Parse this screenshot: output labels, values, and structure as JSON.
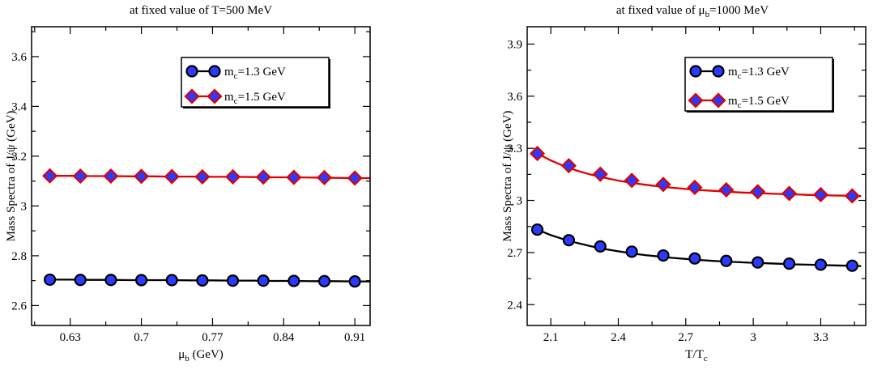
{
  "chart_data": [
    {
      "type": "line",
      "title": "at fixed value of T=500 MeV",
      "xlabel": "μ",
      "xlabel_sub": "b",
      "xlabel_suffix": " (GeV)",
      "ylabel": "Mass Spectra of J/ψ (GeV)",
      "xlim": [
        0.592,
        0.925
      ],
      "ylim": [
        2.52,
        3.72
      ],
      "xticks": [
        0.63,
        0.7,
        0.77,
        0.84,
        0.91
      ],
      "xtick_labels": [
        "0.63",
        "0.7",
        "0.77",
        "0.84",
        "0.91"
      ],
      "yticks": [
        2.6,
        2.8,
        3.0,
        3.2,
        3.4,
        3.6
      ],
      "ytick_labels": [
        "2.6",
        "2.8",
        "3",
        "3.2",
        "3.4",
        "3.6"
      ],
      "legend_position": "top-right",
      "series": [
        {
          "name_main": "m",
          "name_sub": "c",
          "name_suffix": "=1.3 GeV",
          "color": "#000000",
          "marker": "circle",
          "marker_fill": "#2a3bff",
          "x": [
            0.61,
            0.63,
            0.65,
            0.67,
            0.69,
            0.71,
            0.73,
            0.75,
            0.77,
            0.79,
            0.81,
            0.83,
            0.85,
            0.87,
            0.89,
            0.91,
            0.925
          ],
          "y": [
            2.704,
            2.704,
            2.703,
            2.703,
            2.702,
            2.702,
            2.702,
            2.701,
            2.701,
            2.7,
            2.7,
            2.699,
            2.699,
            2.698,
            2.698,
            2.697,
            2.697
          ],
          "marker_x": [
            0.61,
            0.64,
            0.67,
            0.7,
            0.73,
            0.76,
            0.79,
            0.82,
            0.85,
            0.88,
            0.91
          ],
          "marker_y": [
            2.704,
            2.703,
            2.703,
            2.702,
            2.702,
            2.701,
            2.7,
            2.7,
            2.699,
            2.698,
            2.697
          ]
        },
        {
          "name_main": "m",
          "name_sub": "c",
          "name_suffix": "=1.5 GeV",
          "color": "#e00000",
          "marker": "diamond",
          "marker_fill": "#2a3bff",
          "x": [
            0.61,
            0.63,
            0.65,
            0.67,
            0.69,
            0.71,
            0.73,
            0.75,
            0.77,
            0.79,
            0.81,
            0.83,
            0.85,
            0.87,
            0.89,
            0.91,
            0.925
          ],
          "y": [
            3.121,
            3.121,
            3.12,
            3.12,
            3.119,
            3.119,
            3.118,
            3.118,
            3.117,
            3.117,
            3.116,
            3.115,
            3.115,
            3.114,
            3.113,
            3.112,
            3.112
          ],
          "marker_x": [
            0.61,
            0.64,
            0.67,
            0.7,
            0.73,
            0.76,
            0.79,
            0.82,
            0.85,
            0.88,
            0.91
          ],
          "marker_y": [
            3.121,
            3.12,
            3.12,
            3.119,
            3.118,
            3.117,
            3.117,
            3.116,
            3.115,
            3.114,
            3.112
          ]
        }
      ]
    },
    {
      "type": "line",
      "title": "at fixed value of μ",
      "title_sub": "b",
      "title_suffix": "=1000 MeV",
      "xlabel": "T/T",
      "xlabel_sub": "c",
      "xlabel_suffix": "",
      "ylabel": "Mass Spectra of J/ψ (GeV)",
      "xlim": [
        1.995,
        3.5
      ],
      "ylim": [
        2.28,
        4.0
      ],
      "xticks": [
        2.1,
        2.4,
        2.7,
        3.0,
        3.3
      ],
      "xtick_labels": [
        "2.1",
        "2.4",
        "2.7",
        "3",
        "3.3"
      ],
      "yticks": [
        2.4,
        2.7,
        3.0,
        3.3,
        3.6,
        3.9
      ],
      "ytick_labels": [
        "2.4",
        "2.7",
        "3",
        "3.3",
        "3.6",
        "3.9"
      ],
      "legend_position": "top-right",
      "series": [
        {
          "name_main": "m",
          "name_sub": "c",
          "name_suffix": "=1.3 GeV",
          "color": "#000000",
          "marker": "circle",
          "marker_fill": "#2a3bff",
          "x": [
            2.04,
            2.1,
            2.16,
            2.22,
            2.28,
            2.34,
            2.4,
            2.46,
            2.52,
            2.58,
            2.64,
            2.7,
            2.76,
            2.82,
            2.88,
            2.94,
            3.0,
            3.06,
            3.12,
            3.18,
            3.24,
            3.3,
            3.36,
            3.42,
            3.48
          ],
          "y": [
            2.832,
            2.8,
            2.775,
            2.754,
            2.736,
            2.72,
            2.707,
            2.695,
            2.685,
            2.677,
            2.669,
            2.663,
            2.657,
            2.652,
            2.648,
            2.644,
            2.641,
            2.638,
            2.635,
            2.632,
            2.63,
            2.628,
            2.626,
            2.624,
            2.622
          ],
          "marker_x": [
            2.04,
            2.18,
            2.32,
            2.46,
            2.6,
            2.74,
            2.88,
            3.02,
            3.16,
            3.3,
            3.44
          ],
          "marker_y": [
            2.832,
            2.771,
            2.735,
            2.705,
            2.683,
            2.666,
            2.652,
            2.643,
            2.636,
            2.63,
            2.624
          ]
        },
        {
          "name_main": "m",
          "name_sub": "c",
          "name_suffix": "=1.5 GeV",
          "color": "#e00000",
          "marker": "diamond",
          "marker_fill": "#2a3bff",
          "x": [
            2.04,
            2.1,
            2.16,
            2.22,
            2.28,
            2.34,
            2.4,
            2.46,
            2.52,
            2.58,
            2.64,
            2.7,
            2.76,
            2.82,
            2.88,
            2.94,
            3.0,
            3.06,
            3.12,
            3.18,
            3.24,
            3.3,
            3.36,
            3.42,
            3.48
          ],
          "y": [
            3.27,
            3.23,
            3.197,
            3.17,
            3.148,
            3.13,
            3.114,
            3.101,
            3.09,
            3.081,
            3.073,
            3.066,
            3.06,
            3.055,
            3.05,
            3.046,
            3.043,
            3.04,
            3.037,
            3.035,
            3.032,
            3.03,
            3.028,
            3.027,
            3.025
          ],
          "marker_x": [
            2.04,
            2.18,
            2.32,
            2.46,
            2.6,
            2.74,
            2.88,
            3.02,
            3.16,
            3.3,
            3.44
          ],
          "marker_y": [
            3.27,
            3.2,
            3.151,
            3.115,
            3.092,
            3.075,
            3.061,
            3.05,
            3.04,
            3.033,
            3.026
          ]
        }
      ]
    }
  ]
}
